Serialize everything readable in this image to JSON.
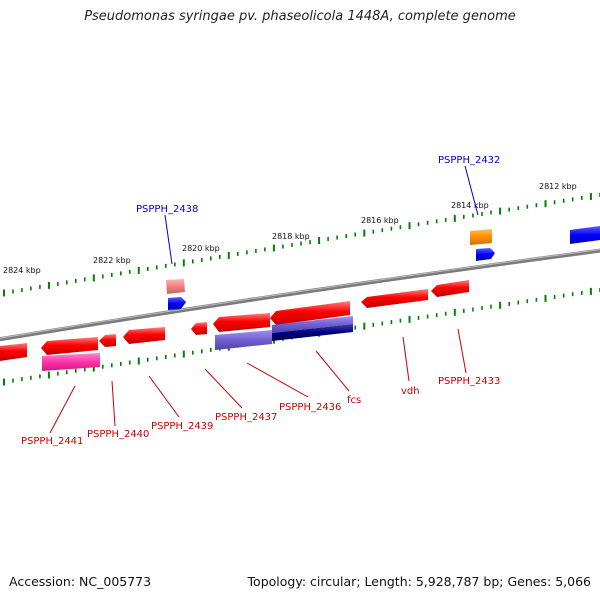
{
  "title": "Pseudomonas syringae pv. phaseolicola 1448A, complete genome",
  "footer": {
    "accession_label": "Accession:",
    "accession": "NC_005773",
    "topology_label": "Topology:",
    "topology": "circular",
    "length_label": "Length:",
    "length": "5,928,787 bp",
    "genes_label": "Genes:",
    "genes": "5,066"
  },
  "colors": {
    "backbone": "#808080",
    "tick": "#008000",
    "cds": "#ff0000",
    "label_reverse": "#cc0000",
    "label_forward": "#0000cc",
    "gene_forward": "#0000ff",
    "misc_light": "#f08080",
    "misc_magenta": "#ff33aa",
    "misc_lavender": "#7060d0",
    "misc_navy": "#000080",
    "misc_orange": "#ff8c00"
  },
  "kbp_labels": [
    "2824 kbp",
    "2822 kbp",
    "2820 kbp",
    "2818 kbp",
    "2816 kbp",
    "2814 kbp",
    "2812 kbp"
  ],
  "gene_labels": [
    {
      "name": "PSPPH_2432",
      "strand": "forward"
    },
    {
      "name": "PSPPH_2438",
      "strand": "forward"
    },
    {
      "name": "PSPPH_2433",
      "strand": "reverse"
    },
    {
      "name": "vdh",
      "strand": "reverse"
    },
    {
      "name": "fcs",
      "strand": "reverse"
    },
    {
      "name": "PSPPH_2436",
      "strand": "reverse"
    },
    {
      "name": "PSPPH_2437",
      "strand": "reverse"
    },
    {
      "name": "PSPPH_2439",
      "strand": "reverse"
    },
    {
      "name": "PSPPH_2440",
      "strand": "reverse"
    },
    {
      "name": "PSPPH_2441",
      "strand": "reverse"
    }
  ]
}
